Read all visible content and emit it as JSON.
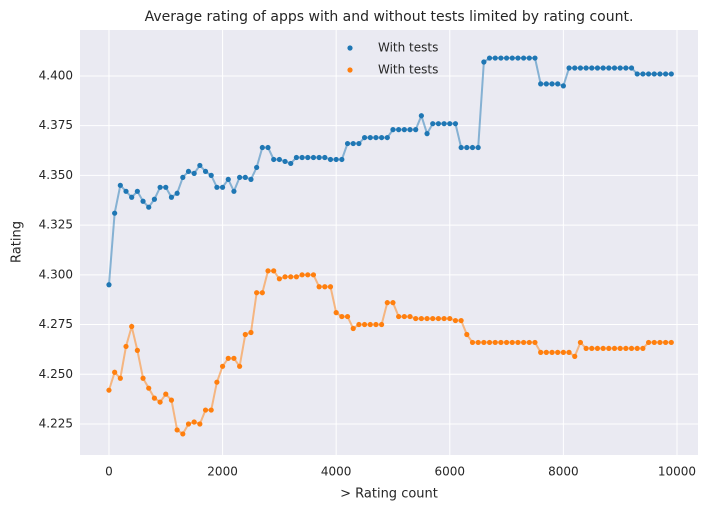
{
  "chart_data": {
    "type": "line",
    "title": "Average rating of apps with and without tests limited by rating count.",
    "x_label": "> Rating count",
    "y_label": "Rating",
    "x": [
      0,
      100,
      200,
      300,
      400,
      500,
      600,
      700,
      800,
      900,
      1000,
      1100,
      1200,
      1300,
      1400,
      1500,
      1600,
      1700,
      1800,
      1900,
      2000,
      2100,
      2200,
      2300,
      2400,
      2500,
      2600,
      2700,
      2800,
      2900,
      3000,
      3100,
      3200,
      3300,
      3400,
      3500,
      3600,
      3700,
      3800,
      3900,
      4000,
      4100,
      4200,
      4300,
      4400,
      4500,
      4600,
      4700,
      4800,
      4900,
      5000,
      5100,
      5200,
      5300,
      5400,
      5500,
      5600,
      5700,
      5800,
      5900,
      6000,
      6100,
      6200,
      6300,
      6400,
      6500,
      6600,
      6700,
      6800,
      6900,
      7000,
      7100,
      7200,
      7300,
      7400,
      7500,
      7600,
      7700,
      7800,
      7900,
      8000,
      8100,
      8200,
      8300,
      8400,
      8500,
      8600,
      8700,
      8800,
      8900,
      9000,
      9100,
      9200,
      9300,
      9400,
      9500,
      9600,
      9700,
      9800,
      9900
    ],
    "series": [
      {
        "name": "With tests",
        "color": "#1f77b4",
        "values": [
          4.295,
          4.331,
          4.345,
          4.342,
          4.339,
          4.342,
          4.337,
          4.334,
          4.338,
          4.344,
          4.344,
          4.339,
          4.341,
          4.349,
          4.352,
          4.351,
          4.355,
          4.352,
          4.35,
          4.344,
          4.344,
          4.348,
          4.342,
          4.349,
          4.349,
          4.348,
          4.354,
          4.364,
          4.364,
          4.358,
          4.358,
          4.357,
          4.356,
          4.359,
          4.359,
          4.359,
          4.359,
          4.359,
          4.359,
          4.358,
          4.358,
          4.358,
          4.366,
          4.366,
          4.366,
          4.369,
          4.369,
          4.369,
          4.369,
          4.369,
          4.373,
          4.373,
          4.373,
          4.373,
          4.373,
          4.38,
          4.371,
          4.376,
          4.376,
          4.376,
          4.376,
          4.376,
          4.364,
          4.364,
          4.364,
          4.364,
          4.407,
          4.409,
          4.409,
          4.409,
          4.409,
          4.409,
          4.409,
          4.409,
          4.409,
          4.409,
          4.396,
          4.396,
          4.396,
          4.396,
          4.395,
          4.404,
          4.404,
          4.404,
          4.404,
          4.404,
          4.404,
          4.404,
          4.404,
          4.404,
          4.404,
          4.404,
          4.404,
          4.401,
          4.401,
          4.401,
          4.401,
          4.401,
          4.401,
          4.401
        ]
      },
      {
        "name": "With tests",
        "color": "#ff7f0e",
        "values": [
          4.242,
          4.251,
          4.248,
          4.264,
          4.274,
          4.262,
          4.248,
          4.243,
          4.238,
          4.236,
          4.24,
          4.237,
          4.222,
          4.22,
          4.225,
          4.226,
          4.225,
          4.232,
          4.232,
          4.246,
          4.254,
          4.258,
          4.258,
          4.254,
          4.27,
          4.271,
          4.291,
          4.291,
          4.302,
          4.302,
          4.298,
          4.299,
          4.299,
          4.299,
          4.3,
          4.3,
          4.3,
          4.294,
          4.294,
          4.294,
          4.281,
          4.279,
          4.279,
          4.273,
          4.275,
          4.275,
          4.275,
          4.275,
          4.275,
          4.286,
          4.286,
          4.279,
          4.279,
          4.279,
          4.278,
          4.278,
          4.278,
          4.278,
          4.278,
          4.278,
          4.278,
          4.277,
          4.277,
          4.27,
          4.266,
          4.266,
          4.266,
          4.266,
          4.266,
          4.266,
          4.266,
          4.266,
          4.266,
          4.266,
          4.266,
          4.266,
          4.261,
          4.261,
          4.261,
          4.261,
          4.261,
          4.261,
          4.259,
          4.266,
          4.263,
          4.263,
          4.263,
          4.263,
          4.263,
          4.263,
          4.263,
          4.263,
          4.263,
          4.263,
          4.263,
          4.266,
          4.266,
          4.266,
          4.266,
          4.266
        ]
      }
    ],
    "xlim": [
      -510,
      10370
    ],
    "ylim": [
      4.2094,
      4.4231
    ],
    "xticks": [
      0,
      2000,
      4000,
      6000,
      8000,
      10000
    ],
    "yticks": [
      4.225,
      {
        "value": 4.25,
        "label": "4.250"
      },
      4.275,
      {
        "value": 4.3,
        "label": "4.300"
      },
      4.325,
      {
        "value": 4.35,
        "label": "4.350"
      },
      4.375,
      {
        "value": 4.4,
        "label": "4.400"
      }
    ],
    "grid": true,
    "legend": "upper center"
  }
}
